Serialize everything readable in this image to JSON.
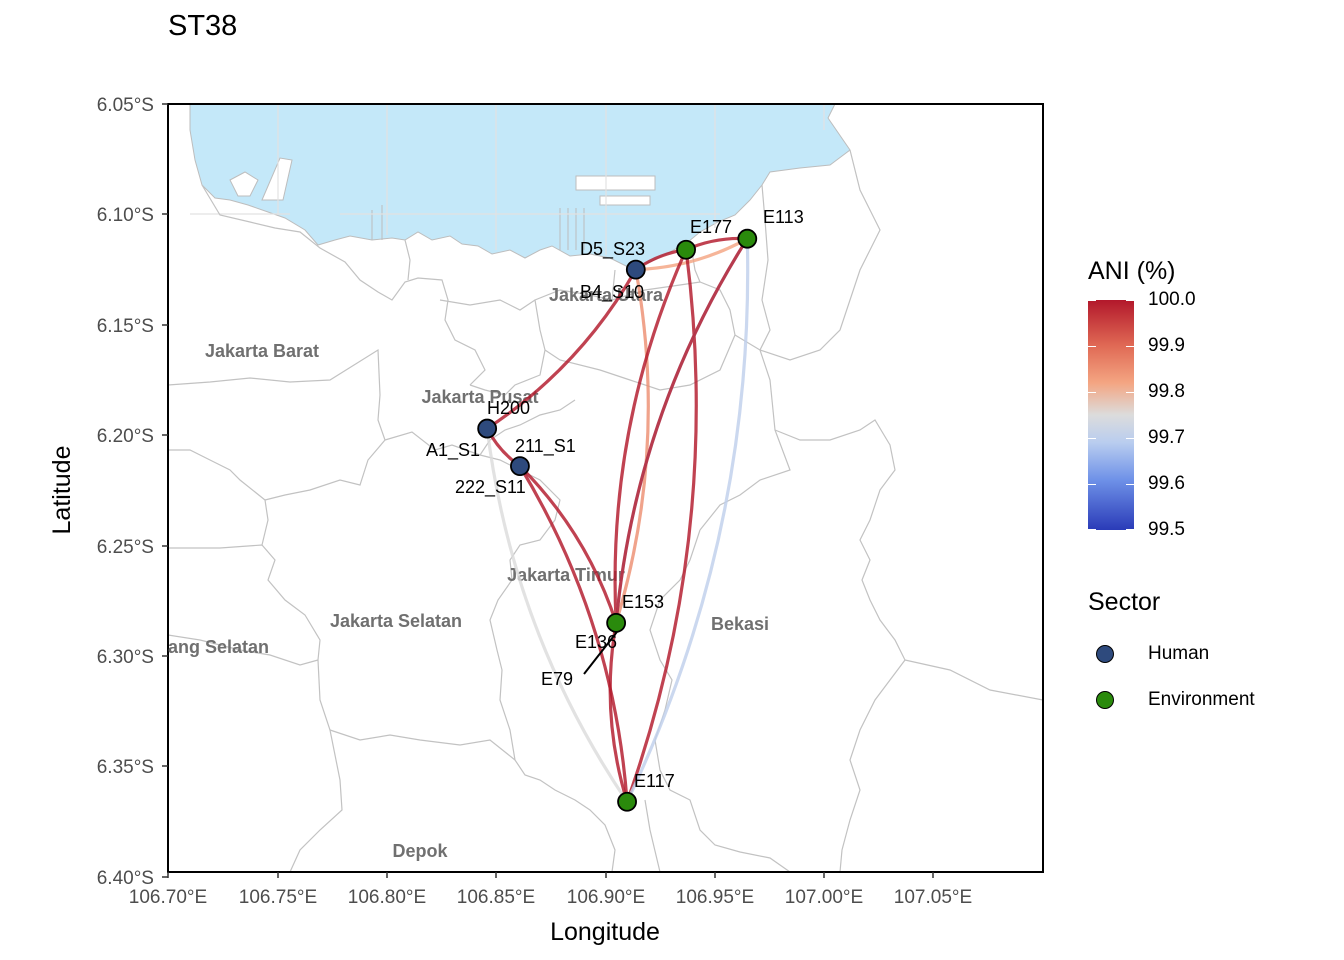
{
  "title": "ST38",
  "axes": {
    "x_title": "Longitude",
    "y_title": "Latitude",
    "x_ticks": [
      "106.70°E",
      "106.75°E",
      "106.80°E",
      "106.85°E",
      "106.90°E",
      "106.95°E",
      "107.00°E",
      "107.05°E"
    ],
    "y_ticks": [
      "6.05°S",
      "6.10°S",
      "6.15°S",
      "6.20°S",
      "6.25°S",
      "6.30°S",
      "6.35°S",
      "6.40°S"
    ]
  },
  "regions": {
    "jakarta_barat": "Jakarta Barat",
    "jakarta_pusat": "Jakarta Pusat",
    "jakarta_utara": "Jakarta Utara",
    "jakarta_timur": "Jakarta Timur",
    "jakarta_selatan": "Jakarta Selatan",
    "bekasi": "Bekasi",
    "tangerang_selatan": "ang Selatan",
    "depok": "Depok"
  },
  "nodes": [
    {
      "id": "D5_S23",
      "sector": "Human",
      "lon": 106.914,
      "lat": -6.125
    },
    {
      "id": "B4_S10",
      "sector": "Human",
      "lon": 106.914,
      "lat": -6.125
    },
    {
      "id": "H200",
      "sector": "Human",
      "lon": 106.846,
      "lat": -6.197
    },
    {
      "id": "A1_S1",
      "sector": "Human",
      "lon": 106.846,
      "lat": -6.197
    },
    {
      "id": "211_S1",
      "sector": "Human",
      "lon": 106.861,
      "lat": -6.214
    },
    {
      "id": "222_S11",
      "sector": "Human",
      "lon": 106.861,
      "lat": -6.214
    },
    {
      "id": "E177",
      "sector": "Environment",
      "lon": 106.937,
      "lat": -6.116
    },
    {
      "id": "E113",
      "sector": "Environment",
      "lon": 106.965,
      "lat": -6.111
    },
    {
      "id": "E153",
      "sector": "Environment",
      "lon": 106.905,
      "lat": -6.285
    },
    {
      "id": "E136",
      "sector": "Environment",
      "lon": 106.905,
      "lat": -6.285
    },
    {
      "id": "E79",
      "sector": "Environment",
      "lon": 106.905,
      "lat": -6.285
    },
    {
      "id": "E117",
      "sector": "Environment",
      "lon": 106.91,
      "lat": -6.366
    }
  ],
  "links": [
    {
      "from": "H200",
      "to": "D5_S23",
      "ani": 100.0
    },
    {
      "from": "D5_S23",
      "to": "E177",
      "ani": 100.0
    },
    {
      "from": "D5_S23",
      "to": "E113",
      "ani": 99.82
    },
    {
      "from": "E177",
      "to": "E113",
      "ani": 100.0
    },
    {
      "from": "H200",
      "to": "211_S1",
      "ani": 100.0
    },
    {
      "from": "211_S1",
      "to": "E153",
      "ani": 100.0
    },
    {
      "from": "H200",
      "to": "E117",
      "ani": 99.75
    },
    {
      "from": "D5_S23",
      "to": "E153",
      "ani": 99.85
    },
    {
      "from": "E177",
      "to": "E153",
      "ani": 100.0
    },
    {
      "from": "E177",
      "to": "E117",
      "ani": 100.0
    },
    {
      "from": "E113",
      "to": "E153",
      "ani": 99.7
    },
    {
      "from": "E113",
      "to": "E117",
      "ani": 99.7
    },
    {
      "from": "E113",
      "to": "E153",
      "ani": 100.0
    },
    {
      "from": "211_S1",
      "to": "E117",
      "ani": 100.0
    },
    {
      "from": "E153",
      "to": "E117",
      "ani": 100.0
    }
  ],
  "legend": {
    "ani_title": "ANI (%)",
    "ani_ticks": [
      "100.0",
      "99.9",
      "99.8",
      "99.7",
      "99.6",
      "99.5"
    ],
    "ani_range": [
      99.5,
      100.0
    ],
    "sector_title": "Sector",
    "sectors": [
      {
        "name": "Human",
        "color": "#2e4a7d"
      },
      {
        "name": "Environment",
        "color": "#2a8a0c"
      }
    ]
  },
  "colors": {
    "water": "#c4e8f9",
    "boundary": "#c2c2c2"
  }
}
